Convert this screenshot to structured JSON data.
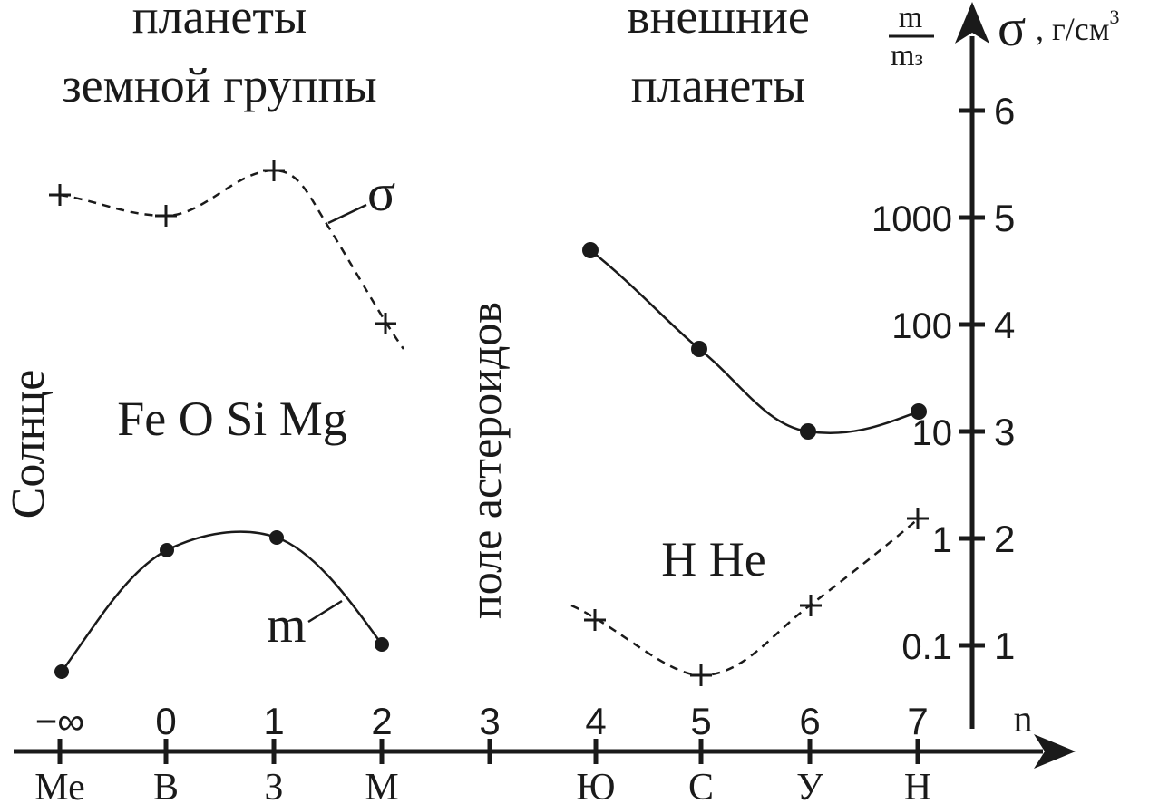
{
  "headings": {
    "terrestrial_line1": "планеты",
    "terrestrial_line2": "земной группы",
    "outer_line1": "внешние",
    "outer_line2": "планеты"
  },
  "side_labels": {
    "sun": "Солнце",
    "asteroid_belt": "поле астероидов"
  },
  "element_labels": {
    "terrestrial": "Fe O Si Mg",
    "outer": "H He"
  },
  "curve_labels": {
    "density": "σ",
    "mass": "m"
  },
  "x_axis": {
    "variable": "n",
    "n_ticks": [
      "−∞",
      "0",
      "1",
      "2",
      "3",
      "4",
      "5",
      "6",
      "7"
    ],
    "planets": [
      "Ме",
      "В",
      "З",
      "М",
      "",
      "Ю",
      "С",
      "У",
      "Н"
    ]
  },
  "y_axis": {
    "sigma_symbol": "σ",
    "sigma_units": ", г/см",
    "sigma_units_sup": "3",
    "mass_ratio_num": "m",
    "mass_ratio_den": "m",
    "mass_ratio_den_sub": "з",
    "sigma_ticks": [
      "1",
      "2",
      "3",
      "4",
      "5",
      "6"
    ],
    "mass_ticks": [
      "0.1",
      "1",
      "10",
      "100",
      "1000"
    ],
    "mass_scale": "log"
  },
  "chart_data": {
    "type": "line",
    "x_labels": [
      "Ме",
      "В",
      "З",
      "М",
      "Ю",
      "С",
      "У",
      "Н"
    ],
    "x_n": [
      "−∞",
      "0",
      "1",
      "2",
      "4",
      "5",
      "6",
      "7"
    ],
    "series": [
      {
        "name": "σ",
        "axis": "sigma, г/см3",
        "style": "dashed, + markers",
        "groups": [
          {
            "planets": [
              "Ме",
              "В",
              "З",
              "М"
            ],
            "values": [
              5.2,
              5.0,
              5.45,
              3.95
            ]
          },
          {
            "planets": [
              "Ю",
              "С",
              "У",
              "Н"
            ],
            "values": [
              1.25,
              0.7,
              1.35,
              2.15
            ]
          }
        ]
      },
      {
        "name": "m",
        "axis": "m/mз (log)",
        "style": "solid, dot markers",
        "groups": [
          {
            "planets": [
              "Ме",
              "В",
              "З",
              "М"
            ],
            "values": [
              0.06,
              0.8,
              1.0,
              0.1
            ]
          },
          {
            "planets": [
              "Ю",
              "С",
              "У",
              "Н"
            ],
            "values": [
              320,
              95,
              14.5,
              17
            ]
          }
        ]
      }
    ],
    "sigma_range": [
      0,
      6.5
    ],
    "mass_range_log": [
      0.05,
      3000
    ]
  }
}
